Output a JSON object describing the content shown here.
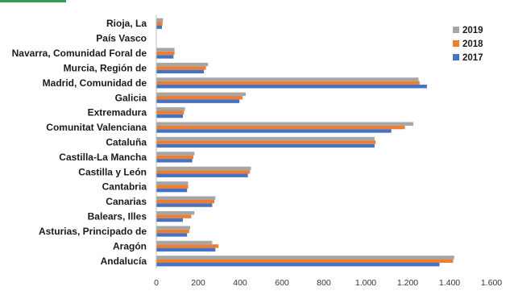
{
  "chart_data": {
    "type": "bar",
    "orientation": "horizontal",
    "categories": [
      "Andalucía",
      "Aragón",
      "Asturias, Principado de",
      "Balears, Illes",
      "Canarias",
      "Cantabria",
      "Castilla y León",
      "Castilla-La Mancha",
      "Cataluña",
      "Comunitat Valenciana",
      "Extremadura",
      "Galicia",
      "Madrid, Comunidad de",
      "Murcia, Región de",
      "Navarra, Comunidad Foral de",
      "País Vasco",
      "Rioja, La"
    ],
    "series": [
      {
        "name": "2017",
        "color": "#4472c4",
        "values": [
          1350,
          280,
          145,
          125,
          265,
          145,
          435,
          170,
          1040,
          1120,
          125,
          395,
          1290,
          225,
          80,
          0,
          25
        ]
      },
      {
        "name": "2018",
        "color": "#ed7d31",
        "values": [
          1415,
          295,
          155,
          165,
          275,
          150,
          445,
          175,
          1045,
          1185,
          130,
          410,
          1255,
          235,
          85,
          0,
          28
        ]
      },
      {
        "name": "2019",
        "color": "#a5a5a5",
        "values": [
          1420,
          265,
          160,
          180,
          280,
          150,
          450,
          180,
          1040,
          1225,
          135,
          425,
          1250,
          245,
          85,
          0,
          30
        ]
      }
    ],
    "legend_order": [
      "2019",
      "2018",
      "2017"
    ],
    "legend_position": "top-right",
    "xlim": [
      0,
      1600
    ],
    "xticks": [
      0,
      200,
      400,
      600,
      800,
      1000,
      1200,
      1400,
      1600
    ],
    "xtick_labels": [
      "0",
      "200",
      "400",
      "600",
      "800",
      "1.000",
      "1.200",
      "1.400",
      "1.600"
    ],
    "grid": false,
    "title": "",
    "xlabel": "",
    "ylabel": ""
  }
}
